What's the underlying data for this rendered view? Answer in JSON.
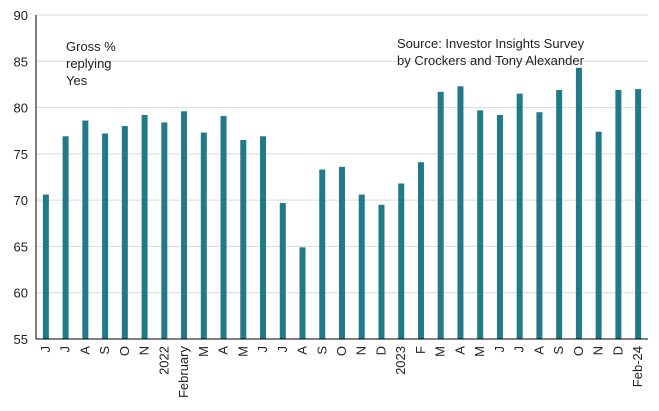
{
  "chart_data": {
    "type": "bar",
    "title": "",
    "xlabel": "",
    "ylabel": "",
    "ylim": [
      55,
      90
    ],
    "yticks": [
      55,
      60,
      65,
      70,
      75,
      80,
      85,
      90
    ],
    "grid": true,
    "bar_color": "#217a87",
    "grid_color": "#d9d9d9",
    "categories": [
      "J",
      "J",
      "A",
      "S",
      "O",
      "N",
      "2022",
      "February",
      "M",
      "A",
      "M",
      "J",
      "J",
      "A",
      "S",
      "O",
      "N",
      "D",
      "2023",
      "F",
      "M",
      "A",
      "M",
      "J",
      "J",
      "A",
      "S",
      "O",
      "N",
      "D",
      "Feb-24"
    ],
    "values": [
      70.6,
      76.9,
      78.6,
      77.2,
      78.0,
      79.2,
      78.4,
      79.6,
      77.3,
      79.1,
      76.5,
      76.9,
      69.7,
      64.9,
      73.3,
      73.6,
      70.6,
      69.5,
      71.8,
      74.1,
      81.7,
      82.3,
      79.7,
      79.2,
      81.5,
      79.5,
      81.9,
      84.3,
      77.4,
      81.9,
      82.0
    ],
    "annotations": {
      "series_note": [
        "Gross %",
        "replying",
        "Yes"
      ],
      "source": [
        "Source: Investor Insights Survey",
        "by Crockers and Tony Alexander"
      ]
    }
  }
}
